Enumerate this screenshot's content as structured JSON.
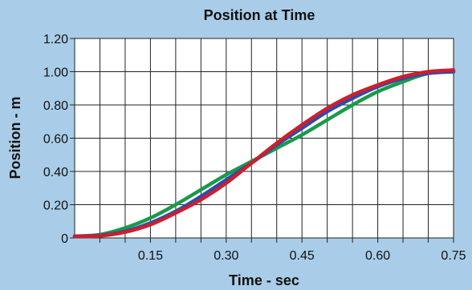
{
  "chart_data": {
    "type": "line",
    "title": "Position at Time",
    "xlabel": "Time - sec",
    "ylabel": "Position - m",
    "xlim": [
      0.0,
      0.75
    ],
    "ylim": [
      0.0,
      1.2
    ],
    "x_ticks": [
      0.15,
      0.3,
      0.45,
      0.6,
      0.75
    ],
    "x_tick_labels": [
      "0.15",
      "0.30",
      "0.45",
      "0.60",
      "0.75"
    ],
    "y_ticks": [
      0,
      0.2,
      0.4,
      0.6,
      0.8,
      1.0,
      1.2
    ],
    "y_tick_labels": [
      "0",
      "0.20",
      "0.40",
      "0.60",
      "0.80",
      "1.00",
      "1.20"
    ],
    "grid": true,
    "background_color": "#a9cde8",
    "plot_background": "#ffffff",
    "series": [
      {
        "color": "#1a9a4a",
        "x": [
          0,
          0.05,
          0.1,
          0.15,
          0.2,
          0.25,
          0.3,
          0.35,
          0.4,
          0.45,
          0.5,
          0.55,
          0.6,
          0.65,
          0.7,
          0.75
        ],
        "y": [
          0.01,
          0.02,
          0.06,
          0.12,
          0.2,
          0.29,
          0.38,
          0.46,
          0.54,
          0.62,
          0.71,
          0.8,
          0.88,
          0.94,
          0.99,
          1.0
        ]
      },
      {
        "color": "#2a4bb0",
        "x": [
          0,
          0.05,
          0.1,
          0.15,
          0.2,
          0.25,
          0.3,
          0.35,
          0.4,
          0.45,
          0.5,
          0.55,
          0.6,
          0.65,
          0.7,
          0.75
        ],
        "y": [
          0.01,
          0.015,
          0.04,
          0.09,
          0.16,
          0.25,
          0.35,
          0.45,
          0.56,
          0.66,
          0.76,
          0.84,
          0.91,
          0.96,
          0.99,
          1.0
        ]
      },
      {
        "color": "#cc1f2e",
        "x": [
          0,
          0.05,
          0.1,
          0.15,
          0.2,
          0.25,
          0.3,
          0.35,
          0.4,
          0.45,
          0.5,
          0.55,
          0.6,
          0.65,
          0.7,
          0.75
        ],
        "y": [
          0.01,
          0.012,
          0.035,
          0.08,
          0.15,
          0.23,
          0.33,
          0.45,
          0.57,
          0.68,
          0.78,
          0.86,
          0.92,
          0.97,
          1.0,
          1.01
        ]
      }
    ]
  }
}
